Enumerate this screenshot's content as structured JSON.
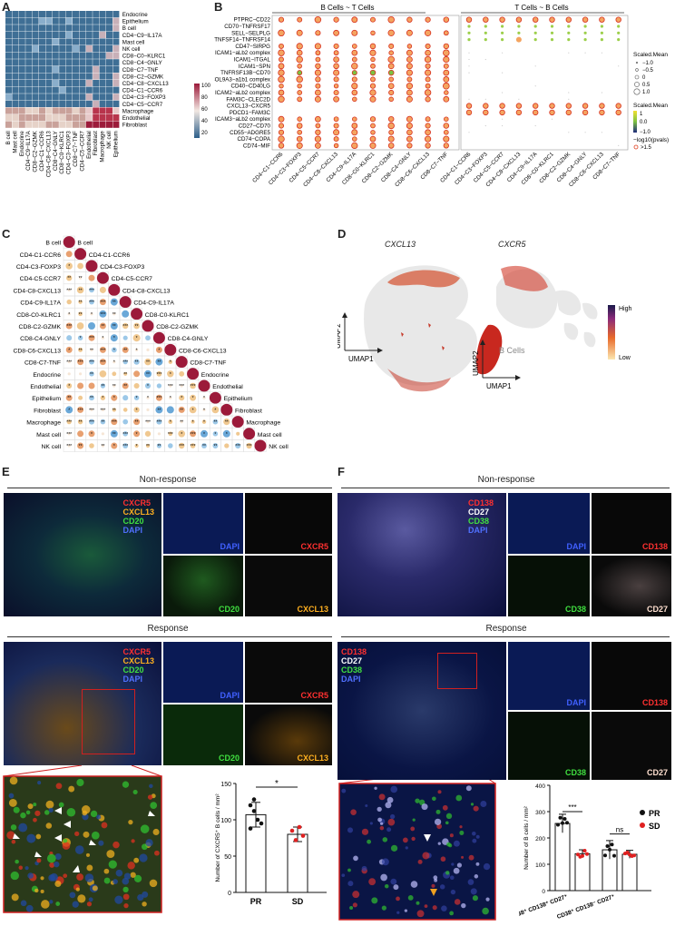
{
  "panels": {
    "a": "A",
    "b": "B",
    "c": "C",
    "d": "D",
    "e": "E",
    "f": "F"
  },
  "panel_a": {
    "row_labels": [
      "Endocrine",
      "Epithelium",
      "B cell",
      "CD4−C9−IL17A",
      "Mast cell",
      "NK cell",
      "CD8−C0−KLRC1",
      "CD8−C4−GNLY",
      "CD8−C7−TNF",
      "CD8−C2−GZMK",
      "CD4−C8−CXCL13",
      "CD4−C1−CCR6",
      "CD4−C3−FOXP3",
      "CD4−C5−CCR7",
      "Macrophage",
      "Endothelial",
      "Fibroblast"
    ],
    "col_labels": [
      "B cell",
      "Mast cell",
      "Endocrine",
      "CD4−C9−IL17A",
      "CD8−C2−GZMK",
      "CD4−C1−CCR6",
      "CD4−C8−CXCL13",
      "CD8−C4−GNLY",
      "CD8−C0−KLRC1",
      "CD4−C3−FOXP3",
      "CD8−C7−TNF",
      "CD4−C5−CCR7",
      "Endothelial",
      "Fibroblast",
      "Macrophage",
      "NK cell",
      "Epithelium"
    ],
    "legend_ticks": [
      "100",
      "80",
      "60",
      "40",
      "20"
    ]
  },
  "panel_b": {
    "group1_title": "B Cells ~ T Cells",
    "group2_title": "T Cells ~ B Cells",
    "row_labels": [
      "PTPRC−CD22",
      "CD70−TNFRSF17",
      "SELL−SELPLG",
      "TNFSF14−TNFRSF14",
      "CD47−SIRPG",
      "ICAM1−aLb2 complex",
      "ICAM1−ITGAL",
      "ICAM1−SPN",
      "TNFRSF13B−CD70",
      "COL9A3−a1b1 complex",
      "CD40−CD40LG",
      "ICAM2−aLb2 complex",
      "FAM3C−CLEC2D",
      "CXCL13−CXCR5",
      "PDCD1−FAM3C",
      "ICAM3−aLb2 complex",
      "CD27−CD70",
      "CD55−ADGRE5",
      "CD74−COPA",
      "CD74−MIF"
    ],
    "col_labels_1": [
      "CD4−C1−CCR6",
      "CD4−C3−FOXP3",
      "CD4−C5−CCR7",
      "CD4−C8−CXCL13",
      "CD4−C9−IL17A",
      "CD8−C0−KLRC1",
      "CD8−C2−GZMK",
      "CD8−C4−GNLY",
      "CD8−C6−CXCL13",
      "CD8−C7−TNF"
    ],
    "col_labels_2": [
      "CD4−C1−CCR6",
      "CD4−C3−FOXP3",
      "CD4−C5−CCR7",
      "CD4−C8−CXCL13",
      "CD4−C9−IL17A",
      "CD8−C0−KLRC1",
      "CD8−C2−GZMK",
      "CD8−C4−GNLY",
      "CD8−C6−CXCL13",
      "CD8−C7−TNF"
    ],
    "legend_size_title": "Scaled.Mean",
    "legend_size_items": [
      "−1.0",
      "−0.5",
      "0",
      "0.5",
      "1.0"
    ],
    "legend_color_title": "Scaled.Mean",
    "legend_color_ticks": [
      "1",
      "0.0",
      "−1.0"
    ],
    "legend_pval_title": "−log10(pvals)",
    "legend_pval_item": ">1.5"
  },
  "panel_c": {
    "labels": [
      "B cell",
      "CD4-C1-CCR6",
      "CD4-C3-FOXP3",
      "CD4-C5-CCR7",
      "CD4-C8-CXCL13",
      "CD4-C9-IL17A",
      "CD8-C0-KLRC1",
      "CD8-C2-GZMK",
      "CD8-C4-GNLY",
      "CD8-C6-CXCL13",
      "CD8-C7-TNF",
      "Endocrine",
      "Endothelial",
      "Epithelium",
      "Fibroblast",
      "Macrophage",
      "Mast cell",
      "NK cell"
    ]
  },
  "panel_d": {
    "title1": "CXCL13",
    "title2": "CXCR5",
    "axis_y": "UMAP2",
    "axis_x": "UMAP1",
    "bcells_label": "B Cells",
    "legend_high": "High",
    "legend_low": "Low"
  },
  "panel_e": {
    "nonresponse_title": "Non-response",
    "response_title": "Response",
    "merge_labels": [
      "CXCR5",
      "CXCL13",
      "CD20",
      "DAPI"
    ],
    "single_labels": [
      "DAPI",
      "CXCR5",
      "CD20",
      "CXCL13"
    ],
    "chart_title": "Number of CXCR5⁺ B cells / mm²"
  },
  "panel_f": {
    "nonresponse_title": "Non-response",
    "response_title": "Response",
    "merge_labels": [
      "CD138",
      "CD27",
      "CD38",
      "DAPI"
    ],
    "single_labels": [
      "DAPI",
      "CD138",
      "CD38",
      "CD27"
    ],
    "chart_title": "Number of B cells / mm²"
  },
  "colors": {
    "heat_low": "#2c5f8a",
    "heat_high": "#9c1a3a",
    "dot_orange": "#f4a460",
    "dot_green": "#7cc242",
    "pr": "#111111",
    "sd": "#e02020"
  },
  "chart_data": [
    {
      "type": "bar",
      "panel": "E",
      "title": "",
      "ylabel": "Number of CXCR5⁺ B cells / mm²",
      "categories": [
        "PR",
        "SD"
      ],
      "values": [
        107,
        80
      ],
      "errors": [
        17,
        10
      ],
      "points": {
        "PR": [
          120,
          112,
          100,
          95,
          88,
          128
        ],
        "SD": [
          85,
          72,
          90,
          78
        ]
      },
      "ylim": [
        0,
        150
      ],
      "yticks": [
        "0",
        "50",
        "100",
        "150"
      ],
      "significance": "*"
    },
    {
      "type": "bar",
      "panel": "F",
      "ylabel": "Number of B cells / mm²",
      "categories": [
        "CD38⁺ CD138⁺ CD27⁺",
        "CD38⁺ CD138⁻ CD27⁺"
      ],
      "series": [
        {
          "name": "PR",
          "values": [
            255,
            155
          ],
          "errors": [
            35,
            35
          ]
        },
        {
          "name": "SD",
          "values": [
            140,
            138
          ],
          "errors": [
            15,
            15
          ]
        }
      ],
      "ylim": [
        0,
        400
      ],
      "yticks": [
        "0",
        "100",
        "200",
        "300",
        "400"
      ],
      "significance": [
        "***",
        "ns"
      ],
      "legend": [
        "PR",
        "SD"
      ]
    }
  ]
}
